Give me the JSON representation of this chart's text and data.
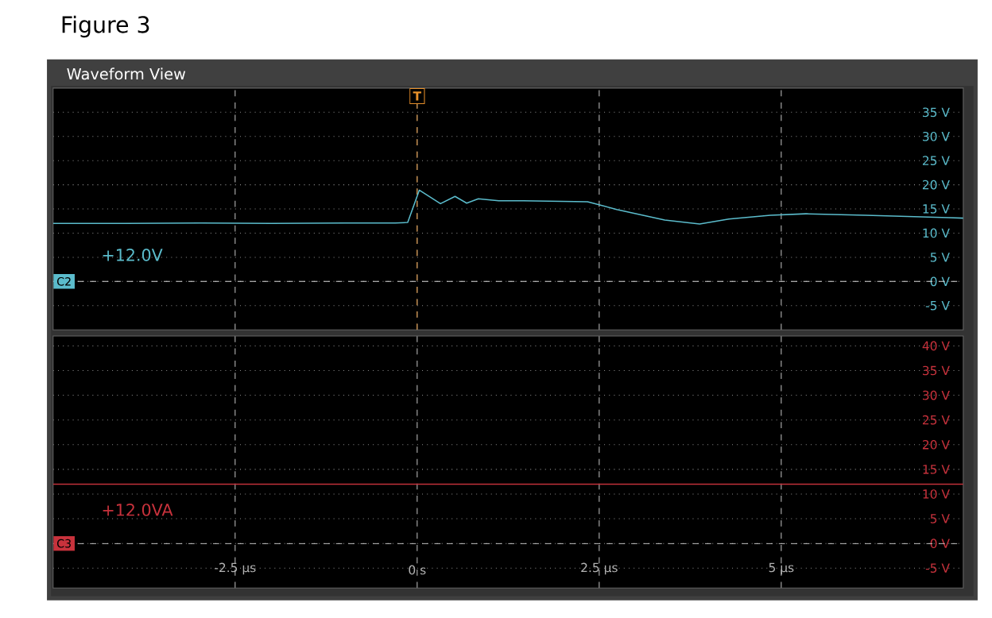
{
  "chart_data": [
    {
      "type": "line",
      "title": "Figure 3",
      "subtitle": "Waveform View",
      "series": [
        {
          "color": "#5bbccc",
          "x": [
            -5,
            -4,
            -3,
            -2,
            -1,
            -0.3,
            -0.13,
            0.03,
            0.32,
            0.52,
            0.68,
            0.84,
            1.12,
            1.46,
            2.34,
            2.74,
            3.4,
            3.88,
            4.28,
            4.85,
            5.34,
            6.16,
            7.3,
            7.5
          ],
          "values": [
            12.0,
            12.0,
            12.1,
            12.0,
            12.1,
            12.1,
            12.2,
            18.9,
            16.1,
            17.6,
            16.2,
            17.1,
            16.7,
            16.7,
            16.5,
            14.9,
            12.7,
            11.9,
            12.9,
            13.7,
            14.0,
            13.7,
            13.2,
            13.1
          ]
        }
      ],
      "xlim": [
        -5,
        7.5
      ],
      "xticks": [
        {
          "value": -2.5,
          "label": null
        },
        {
          "value": 0,
          "label": null
        },
        {
          "value": 2.5,
          "label": null
        },
        {
          "value": 5,
          "label": null
        }
      ],
      "ylim": [
        -10,
        40
      ],
      "yticks": [
        {
          "value": -5,
          "label": "-5 V"
        },
        {
          "value": 0,
          "label": "0 V"
        },
        {
          "value": 5,
          "label": "5 V"
        },
        {
          "value": 10,
          "label": "10 V"
        },
        {
          "value": 15,
          "label": "15 V"
        },
        {
          "value": 20,
          "label": "20 V"
        },
        {
          "value": 25,
          "label": "25 V"
        },
        {
          "value": 30,
          "label": "30 V"
        },
        {
          "value": 35,
          "label": "35 V"
        }
      ],
      "tick_labels": "y",
      "grid": true,
      "ref_lines": [
        {
          "axis": "y",
          "value": 0,
          "label": "C2"
        },
        {
          "axis": "x",
          "value": 0,
          "label": "T",
          "color": "#e8902a"
        }
      ],
      "annotations": [
        "+12.0V"
      ]
    },
    {
      "type": "line",
      "series": [
        {
          "color": "#c8323c",
          "x": [
            -5,
            7.5
          ],
          "values": [
            12,
            12
          ]
        }
      ],
      "xlim": [
        -5,
        7.5
      ],
      "xticks": [
        {
          "value": -2.5,
          "label": "-2.5 µs"
        },
        {
          "value": 0,
          "label": "0 s"
        },
        {
          "value": 2.5,
          "label": "2.5 µs"
        },
        {
          "value": 5,
          "label": "5 µs"
        }
      ],
      "ylim": [
        -9,
        42
      ],
      "yticks": [
        {
          "value": -5,
          "label": "-5 V"
        },
        {
          "value": 0,
          "label": "0 V"
        },
        {
          "value": 5,
          "label": "5 V"
        },
        {
          "value": 10,
          "label": "10 V"
        },
        {
          "value": 15,
          "label": "15 V"
        },
        {
          "value": 20,
          "label": "20 V"
        },
        {
          "value": 25,
          "label": "25 V"
        },
        {
          "value": 30,
          "label": "30 V"
        },
        {
          "value": 35,
          "label": "35 V"
        },
        {
          "value": 40,
          "label": "40 V"
        }
      ],
      "grid": true,
      "ref_lines": [
        {
          "axis": "y",
          "value": 0,
          "label": "C3"
        }
      ],
      "annotations": [
        "+12.0VA"
      ]
    }
  ]
}
